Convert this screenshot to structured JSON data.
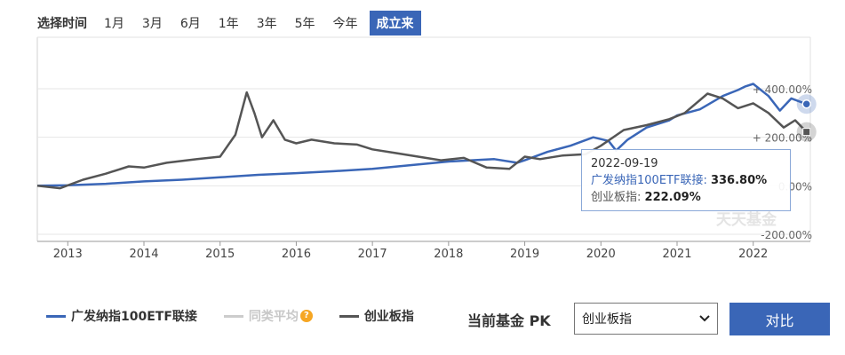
{
  "range": {
    "label": "选择时间",
    "buttons": [
      "1月",
      "3月",
      "6月",
      "1年",
      "3年",
      "5年",
      "今年",
      "成立来"
    ],
    "active": "成立来"
  },
  "chart_data": {
    "type": "line",
    "x_ticks": [
      "2013",
      "2014",
      "2015",
      "2016",
      "2017",
      "2018",
      "2019",
      "2020",
      "2021",
      "2022"
    ],
    "y_ticks": [
      "400.00%",
      "200.00%",
      "0.00%",
      "-200.00%"
    ],
    "y_tick_values": [
      400,
      200,
      0,
      -200
    ],
    "ylim": [
      -200,
      400
    ],
    "xlim": [
      2012.6,
      2022.75
    ],
    "grid": true,
    "series": [
      {
        "name": "广发纳指100ETF联接",
        "color": "#3a66b7",
        "x": [
          2012.6,
          2013.0,
          2013.5,
          2014.0,
          2014.5,
          2015.0,
          2015.5,
          2016.0,
          2016.5,
          2017.0,
          2017.5,
          2018.0,
          2018.3,
          2018.6,
          2018.9,
          2019.0,
          2019.3,
          2019.6,
          2019.9,
          2020.1,
          2020.2,
          2020.35,
          2020.6,
          2020.9,
          2021.0,
          2021.3,
          2021.6,
          2021.8,
          2021.9,
          2022.0,
          2022.2,
          2022.35,
          2022.5,
          2022.7
        ],
        "y": [
          0,
          2,
          8,
          18,
          25,
          35,
          45,
          52,
          60,
          70,
          85,
          100,
          105,
          110,
          95,
          105,
          140,
          165,
          200,
          185,
          145,
          190,
          240,
          270,
          290,
          315,
          370,
          395,
          410,
          420,
          370,
          310,
          360,
          336.8
        ]
      },
      {
        "name": "创业板指",
        "color": "#555555",
        "x": [
          2012.6,
          2012.9,
          2013.2,
          2013.5,
          2013.8,
          2014.0,
          2014.3,
          2014.7,
          2015.0,
          2015.2,
          2015.35,
          2015.45,
          2015.55,
          2015.7,
          2015.85,
          2016.0,
          2016.2,
          2016.5,
          2016.8,
          2017.0,
          2017.3,
          2017.6,
          2017.9,
          2018.2,
          2018.5,
          2018.8,
          2019.0,
          2019.2,
          2019.5,
          2019.8,
          2020.0,
          2020.3,
          2020.6,
          2020.9,
          2021.1,
          2021.4,
          2021.6,
          2021.8,
          2022.0,
          2022.2,
          2022.4,
          2022.55,
          2022.7
        ],
        "y": [
          0,
          -10,
          25,
          50,
          80,
          75,
          95,
          110,
          120,
          210,
          385,
          300,
          200,
          270,
          190,
          175,
          190,
          175,
          170,
          150,
          135,
          120,
          105,
          115,
          75,
          70,
          120,
          110,
          125,
          130,
          165,
          230,
          250,
          275,
          300,
          380,
          360,
          320,
          340,
          300,
          240,
          270,
          222.09
        ]
      }
    ]
  },
  "tooltip": {
    "date": "2022-09-19",
    "row1_label": "广发纳指100ETF联接:",
    "row1_value": "336.80%",
    "row2_label": "创业板指:",
    "row2_value": "222.09%"
  },
  "watermark": "天天基金",
  "legend": {
    "items": [
      {
        "label": "广发纳指100ETF联接",
        "color": "#3a66b7"
      },
      {
        "label": "同类平均",
        "color": "#cccccc"
      },
      {
        "label": "创业板指",
        "color": "#555555"
      }
    ]
  },
  "pk": {
    "label": "当前基金 PK",
    "selected": "创业板指",
    "button": "对比"
  }
}
